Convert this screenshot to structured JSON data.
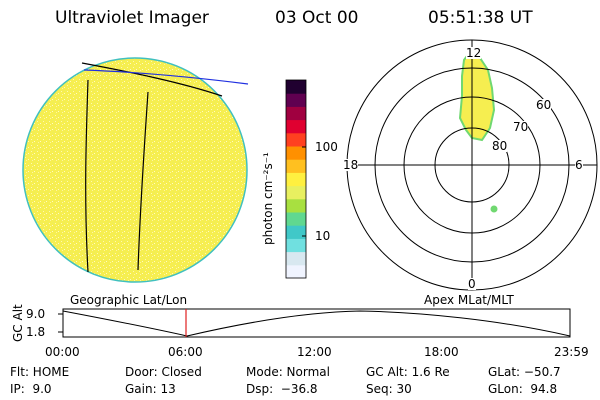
{
  "header": {
    "title": "Ultraviolet Imager",
    "date": "03 Oct 00",
    "time": "05:51:38 UT"
  },
  "colorbar": {
    "label": "photon cm⁻²s⁻¹",
    "ticks": [
      "100",
      "10"
    ],
    "colors": [
      "#f0f4ff",
      "#d8e8f0",
      "#70e0e0",
      "#40c8c8",
      "#60d890",
      "#a8e040",
      "#e8f060",
      "#fff040",
      "#ffc020",
      "#ff9000",
      "#ff4020",
      "#e00030",
      "#a00040",
      "#600050",
      "#200030"
    ]
  },
  "geo_panel": {
    "label": "Geographic Lat/Lon",
    "disk_color": "#f8f060"
  },
  "polar_panel": {
    "label": "Apex MLat/MLT",
    "mlt_labels": {
      "top": "12",
      "left": "18",
      "right": "6",
      "bottom": "0"
    },
    "lat_labels": [
      "60",
      "70",
      "80"
    ]
  },
  "altitude_strip": {
    "axis_label": "GC Alt",
    "y_ticks": [
      "9.0",
      "1.8"
    ],
    "x_ticks": [
      "00:00",
      "06:00",
      "12:00",
      "18:00",
      "23:59"
    ],
    "marker_color": "#e02020"
  },
  "info": {
    "flt": "Flt: HOME",
    "ip": "IP:  9.0",
    "door": "Door: Closed",
    "gain": "Gain: 13",
    "mode": "Mode: Normal",
    "dsp": "Dsp:  −36.8",
    "gcalt": "GC Alt: 1.6 Re",
    "seq": "Seq: 30",
    "glat": "GLat: −50.7",
    "glon": "GLon:  94.8"
  }
}
